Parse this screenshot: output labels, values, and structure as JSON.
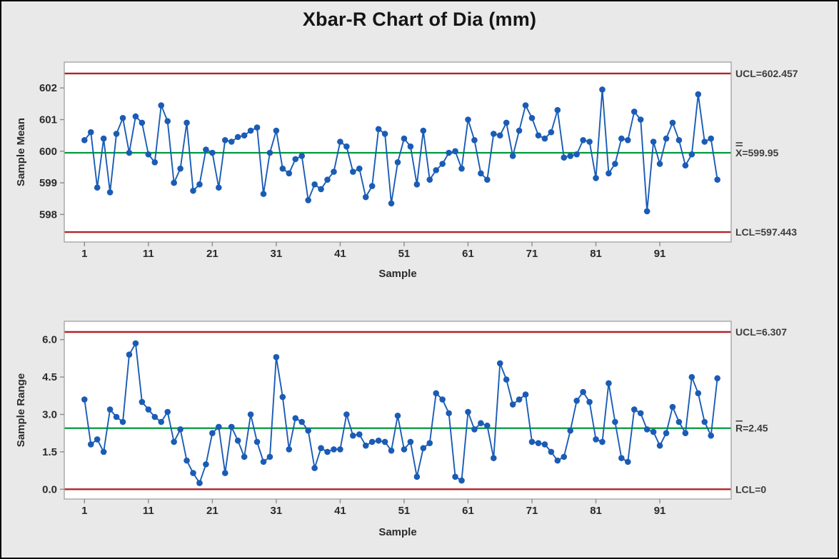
{
  "header": {
    "title": "Xbar-R Chart of Dia (mm)"
  },
  "colors": {
    "background": "#e9e9e9",
    "plot_background": "#ffffff",
    "plot_border": "#a6a6a6",
    "series_blue": "#1a5cb5",
    "center_line_green": "#009a3d",
    "control_limit_red": "#b2232a",
    "text_dark": "#2b2b2b",
    "annotation_text": "#3d3d3d"
  },
  "chart_data": [
    {
      "type": "line",
      "name": "xbar-chart",
      "title": "",
      "xlabel": "Sample",
      "ylabel": "Sample Mean",
      "x_start": 1,
      "x_ticks": [
        1,
        11,
        21,
        31,
        41,
        51,
        61,
        71,
        81,
        91
      ],
      "y_ticks": [
        598,
        599,
        600,
        601,
        602
      ],
      "y_tick_labels": [
        "598",
        "599",
        "600",
        "601",
        "602"
      ],
      "xlim": [
        -2,
        102.3
      ],
      "ylim": [
        597.13,
        602.82
      ],
      "grid": false,
      "legend": "none",
      "ucl": 602.457,
      "center": 599.95,
      "lcl": 597.443,
      "ucl_label": "UCL=602.457",
      "center_label": {
        "letter": "X",
        "bar": "double",
        "rest": "=599.95"
      },
      "lcl_label": "LCL=597.443",
      "values": [
        600.35,
        600.6,
        598.85,
        600.4,
        598.7,
        600.55,
        601.05,
        599.95,
        601.1,
        600.9,
        599.9,
        599.65,
        601.45,
        600.95,
        599.0,
        599.45,
        600.9,
        598.75,
        598.95,
        600.05,
        599.95,
        598.85,
        600.35,
        600.3,
        600.45,
        600.5,
        600.65,
        600.75,
        598.65,
        599.95,
        600.65,
        599.45,
        599.3,
        599.75,
        599.85,
        598.45,
        598.95,
        598.8,
        599.1,
        599.35,
        600.3,
        600.15,
        599.35,
        599.45,
        598.55,
        598.9,
        600.7,
        600.55,
        598.35,
        599.65,
        600.4,
        600.15,
        598.95,
        600.65,
        599.1,
        599.4,
        599.6,
        599.95,
        600.0,
        599.45,
        601.0,
        600.35,
        599.3,
        599.1,
        600.55,
        600.5,
        600.9,
        599.85,
        600.65,
        601.45,
        601.05,
        600.5,
        600.4,
        600.6,
        601.3,
        599.8,
        599.85,
        599.9,
        600.35,
        600.3,
        599.15,
        601.95,
        599.3,
        599.6,
        600.4,
        600.35,
        601.25,
        601.0,
        598.1,
        600.3,
        599.6,
        600.4,
        600.9,
        600.35,
        599.55,
        599.9,
        601.8,
        600.3,
        600.4,
        599.1
      ]
    },
    {
      "type": "line",
      "name": "r-chart",
      "title": "",
      "xlabel": "Sample",
      "ylabel": "Sample Range",
      "x_start": 1,
      "x_ticks": [
        1,
        11,
        21,
        31,
        41,
        51,
        61,
        71,
        81,
        91
      ],
      "y_ticks": [
        0,
        1.5,
        3,
        4.5,
        6
      ],
      "y_tick_labels": [
        "0.0",
        "1.5",
        "3.0",
        "4.5",
        "6.0"
      ],
      "xlim": [
        -2,
        102.3
      ],
      "ylim": [
        -0.39,
        6.74
      ],
      "grid": false,
      "legend": "none",
      "ucl": 6.307,
      "center": 2.45,
      "lcl": 0,
      "ucl_label": "UCL=6.307",
      "center_label": {
        "letter": "R",
        "bar": "single",
        "rest": "=2.45"
      },
      "lcl_label": "LCL=0",
      "values": [
        3.6,
        1.8,
        2.0,
        1.5,
        3.2,
        2.9,
        2.7,
        5.4,
        5.85,
        3.5,
        3.2,
        2.9,
        2.7,
        3.1,
        1.9,
        2.4,
        1.15,
        0.65,
        0.25,
        1.0,
        2.25,
        2.5,
        0.65,
        2.5,
        1.95,
        1.3,
        3.0,
        1.9,
        1.1,
        1.3,
        5.3,
        3.7,
        1.6,
        2.85,
        2.7,
        2.35,
        0.85,
        1.65,
        1.5,
        1.6,
        1.6,
        3.0,
        2.15,
        2.2,
        1.75,
        1.9,
        1.95,
        1.9,
        1.55,
        2.95,
        1.6,
        1.9,
        0.5,
        1.65,
        1.85,
        3.85,
        3.6,
        3.05,
        0.5,
        0.35,
        3.1,
        2.4,
        2.65,
        2.55,
        1.25,
        5.05,
        4.4,
        3.4,
        3.6,
        3.8,
        1.9,
        1.85,
        1.8,
        1.5,
        1.15,
        1.3,
        2.35,
        3.55,
        3.9,
        3.5,
        2.0,
        1.9,
        4.25,
        2.7,
        1.25,
        1.1,
        3.2,
        3.05,
        2.4,
        2.3,
        1.75,
        2.25,
        3.3,
        2.7,
        2.25,
        4.5,
        3.85,
        2.7,
        2.15,
        4.45
      ]
    }
  ]
}
